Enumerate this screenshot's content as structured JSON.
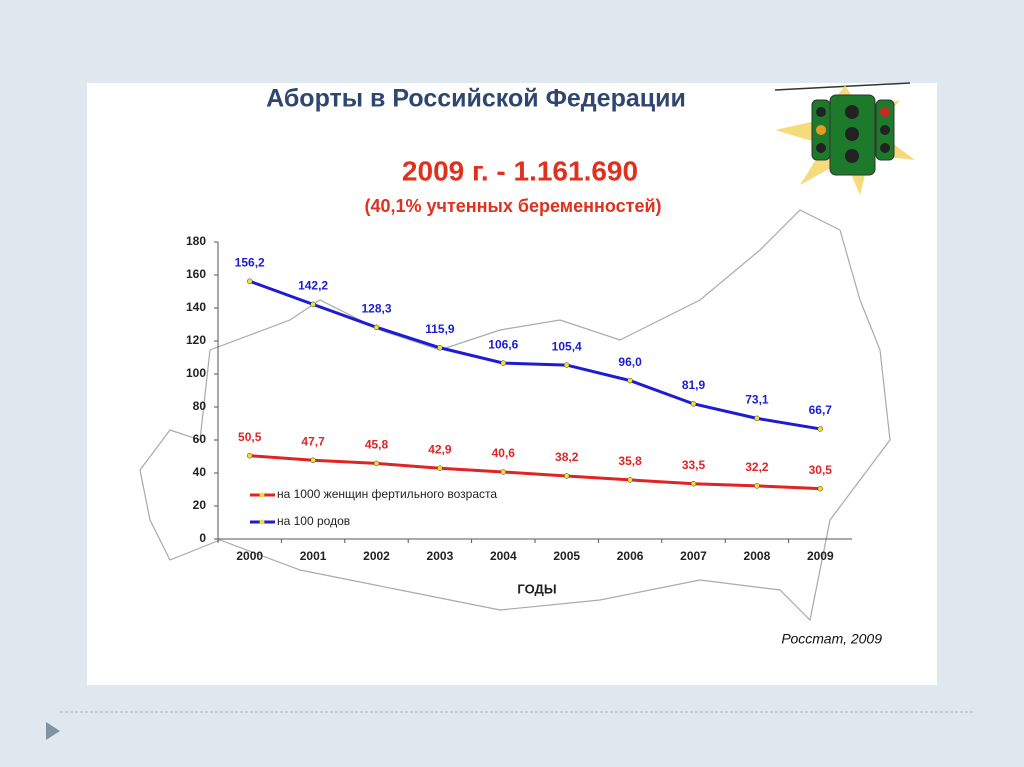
{
  "chart_data": {
    "type": "line",
    "title": "Аборты в Российской Федерации",
    "subtitle": "2009 г. - 1.161.690",
    "annotation": "(40,1% учтенных беременностей)",
    "xlabel": "ГОДЫ",
    "source": "Росстат, 2009",
    "categories": [
      "2000",
      "2001",
      "2002",
      "2003",
      "2004",
      "2005",
      "2006",
      "2007",
      "2008",
      "2009"
    ],
    "ylim": [
      0,
      180
    ],
    "yticks": [
      0,
      20,
      40,
      60,
      80,
      100,
      120,
      140,
      160,
      180
    ],
    "legend": "lower left",
    "series": [
      {
        "name": "на 1000 женщин фертильного возраста",
        "color": "#e02424",
        "values": [
          50.5,
          47.7,
          45.8,
          42.9,
          40.6,
          38.2,
          35.8,
          33.5,
          32.2,
          30.5
        ],
        "value_labels": [
          "50,5",
          "47,7",
          "45,8",
          "42,9",
          "40,6",
          "38,2",
          "35,8",
          "33,5",
          "32,2",
          "30,5"
        ]
      },
      {
        "name": "на 100 родов",
        "color": "#1c1cd6",
        "values": [
          156.2,
          142.2,
          128.3,
          115.9,
          106.6,
          105.4,
          96.0,
          81.9,
          73.1,
          66.7
        ],
        "value_labels": [
          "156,2",
          "142,2",
          "128,3",
          "115,9",
          "106,6",
          "105,4",
          "96,0",
          "81,9",
          "73,1",
          "66,7"
        ]
      }
    ]
  }
}
